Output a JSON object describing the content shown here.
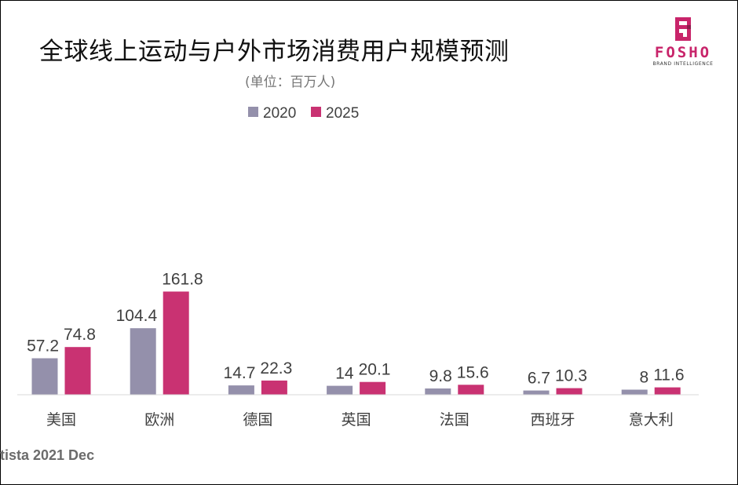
{
  "title": "全球线上运动与户外市场消费用户规模预测",
  "subtitle": "(单位：百万人)",
  "logo": {
    "word": "FOSHO",
    "tagline": "BRAND INTELLIGENCE",
    "icon": "fosho-logo-icon"
  },
  "source": "tista 2021 Dec",
  "colors": {
    "series_2020": "#9490ab",
    "series_2025": "#c93272",
    "brand": "#c8246a"
  },
  "chart_data": {
    "type": "bar",
    "title": "全球线上运动与户外市场消费用户规模预测",
    "ylabel": "单位：百万人",
    "xlabel": "",
    "ylim": [
      0,
      170
    ],
    "grid": false,
    "legend": "top-center",
    "categories": [
      "美国",
      "欧洲",
      "德国",
      "英国",
      "法国",
      "西班牙",
      "意大利"
    ],
    "series": [
      {
        "name": "2020",
        "values": [
          57.2,
          104.4,
          14.7,
          14,
          9.8,
          6.7,
          8
        ],
        "labels": [
          "57.2",
          "104.4",
          "14.7",
          "14",
          "9.8",
          "6.7",
          "8"
        ]
      },
      {
        "name": "2025",
        "values": [
          74.8,
          161.8,
          22.3,
          20.1,
          15.6,
          10.3,
          11.6
        ],
        "labels": [
          "74.8",
          "161.8",
          "22.3",
          "20.1",
          "15.6",
          "10.3",
          "11.6"
        ]
      }
    ]
  }
}
